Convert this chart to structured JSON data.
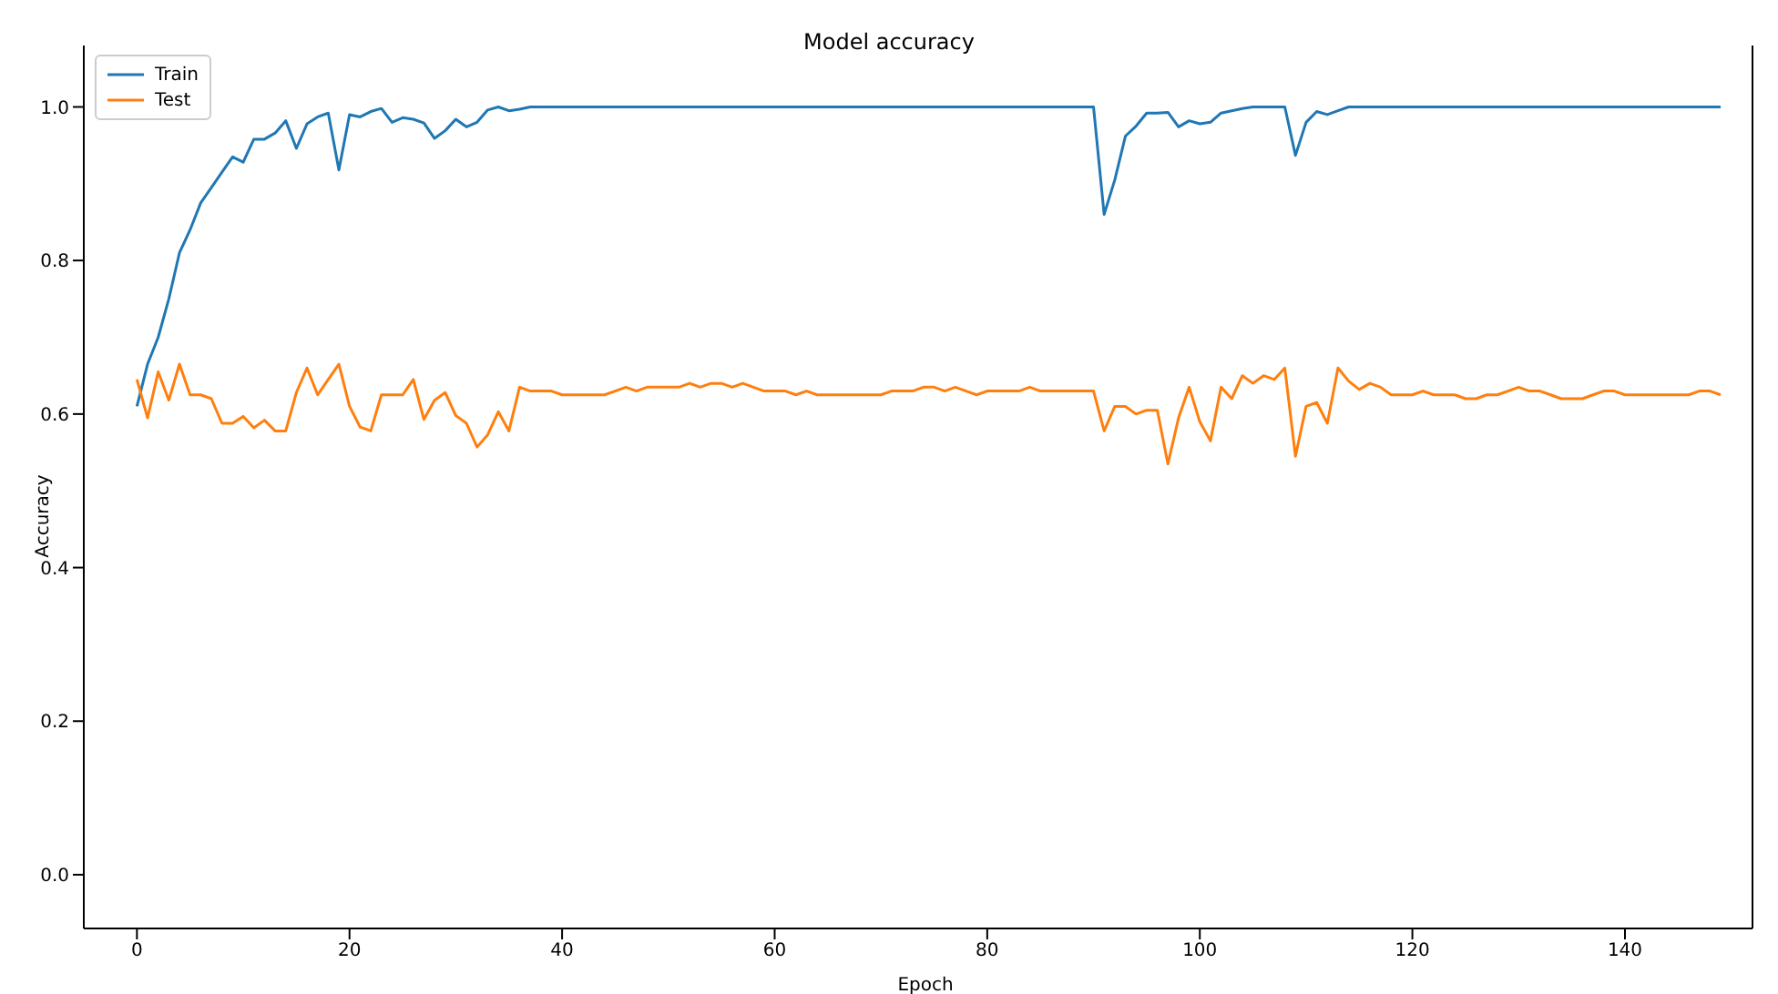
{
  "chart_data": {
    "type": "line",
    "title": "Model accuracy",
    "xlabel": "Epoch",
    "ylabel": "Accuracy",
    "x": [
      0,
      1,
      2,
      3,
      4,
      5,
      6,
      7,
      8,
      9,
      10,
      11,
      12,
      13,
      14,
      15,
      16,
      17,
      18,
      19,
      20,
      21,
      22,
      23,
      24,
      25,
      26,
      27,
      28,
      29,
      30,
      31,
      32,
      33,
      34,
      35,
      36,
      37,
      38,
      39,
      40,
      41,
      42,
      43,
      44,
      45,
      46,
      47,
      48,
      49,
      50,
      51,
      52,
      53,
      54,
      55,
      56,
      57,
      58,
      59,
      60,
      61,
      62,
      63,
      64,
      65,
      66,
      67,
      68,
      69,
      70,
      71,
      72,
      73,
      74,
      75,
      76,
      77,
      78,
      79,
      80,
      81,
      82,
      83,
      84,
      85,
      86,
      87,
      88,
      89,
      90,
      91,
      92,
      93,
      94,
      95,
      96,
      97,
      98,
      99,
      100,
      101,
      102,
      103,
      104,
      105,
      106,
      107,
      108,
      109,
      110,
      111,
      112,
      113,
      114,
      115,
      116,
      117,
      118,
      119,
      120,
      121,
      122,
      123,
      124,
      125,
      126,
      127,
      128,
      129,
      130,
      131,
      132,
      133,
      134,
      135,
      136,
      137,
      138,
      139,
      140,
      141,
      142,
      143,
      144,
      145,
      146,
      147,
      148,
      149
    ],
    "series": [
      {
        "name": "Train",
        "color": "#1f77b4",
        "values": [
          0.61,
          0.665,
          0.7,
          0.75,
          0.81,
          0.84,
          0.875,
          0.895,
          0.915,
          0.935,
          0.928,
          0.958,
          0.958,
          0.966,
          0.982,
          0.946,
          0.978,
          0.987,
          0.992,
          0.918,
          0.99,
          0.987,
          0.994,
          0.998,
          0.98,
          0.986,
          0.984,
          0.979,
          0.959,
          0.969,
          0.984,
          0.974,
          0.98,
          0.996,
          1.0,
          0.995,
          0.997,
          1,
          1,
          1,
          1,
          1,
          1,
          1,
          1,
          1,
          1,
          1,
          1,
          1,
          1,
          1,
          1,
          1,
          1,
          1,
          1,
          1,
          1,
          1,
          1,
          1,
          1,
          1,
          1,
          1,
          1,
          1,
          1,
          1,
          1,
          1,
          1,
          1,
          1,
          1,
          1,
          1,
          1,
          1,
          1,
          1,
          1,
          1,
          1,
          1,
          1,
          1,
          1,
          1,
          1,
          0.86,
          0.905,
          0.962,
          0.975,
          0.992,
          0.992,
          0.993,
          0.974,
          0.982,
          0.978,
          0.98,
          0.992,
          0.995,
          0.998,
          1,
          1,
          1,
          1,
          0.937,
          0.98,
          0.994,
          0.99,
          0.995,
          1,
          1,
          1,
          1,
          1,
          1,
          1,
          1,
          1,
          1,
          1,
          1,
          1,
          1,
          1,
          1,
          1,
          1,
          1,
          1,
          1,
          1,
          1,
          1,
          1,
          1,
          1,
          1,
          1,
          1,
          1,
          1,
          1,
          1,
          1,
          1
        ]
      },
      {
        "name": "Test",
        "color": "#ff7f0e",
        "values": [
          0.645,
          0.595,
          0.655,
          0.618,
          0.665,
          0.625,
          0.625,
          0.62,
          0.588,
          0.588,
          0.597,
          0.582,
          0.592,
          0.578,
          0.578,
          0.628,
          0.66,
          0.625,
          0.645,
          0.665,
          0.61,
          0.583,
          0.578,
          0.625,
          0.625,
          0.625,
          0.645,
          0.593,
          0.618,
          0.628,
          0.598,
          0.588,
          0.557,
          0.573,
          0.603,
          0.578,
          0.635,
          0.63,
          0.63,
          0.63,
          0.625,
          0.625,
          0.625,
          0.625,
          0.625,
          0.63,
          0.635,
          0.63,
          0.635,
          0.635,
          0.635,
          0.635,
          0.64,
          0.635,
          0.64,
          0.64,
          0.635,
          0.64,
          0.635,
          0.63,
          0.63,
          0.63,
          0.625,
          0.63,
          0.625,
          0.625,
          0.625,
          0.625,
          0.625,
          0.625,
          0.625,
          0.63,
          0.63,
          0.63,
          0.635,
          0.635,
          0.63,
          0.635,
          0.63,
          0.625,
          0.63,
          0.63,
          0.63,
          0.63,
          0.635,
          0.63,
          0.63,
          0.63,
          0.63,
          0.63,
          0.63,
          0.578,
          0.61,
          0.61,
          0.6,
          0.605,
          0.605,
          0.535,
          0.595,
          0.635,
          0.59,
          0.565,
          0.635,
          0.62,
          0.65,
          0.64,
          0.65,
          0.645,
          0.66,
          0.545,
          0.61,
          0.615,
          0.588,
          0.66,
          0.643,
          0.632,
          0.64,
          0.635,
          0.625,
          0.625,
          0.625,
          0.63,
          0.625,
          0.625,
          0.625,
          0.62,
          0.62,
          0.625,
          0.625,
          0.63,
          0.635,
          0.63,
          0.63,
          0.625,
          0.62,
          0.62,
          0.62,
          0.625,
          0.63,
          0.63,
          0.625,
          0.625,
          0.625,
          0.625,
          0.625,
          0.625,
          0.625,
          0.63,
          0.63,
          0.625
        ]
      }
    ],
    "xlim": [
      -5,
      152
    ],
    "xticks": [
      0,
      20,
      40,
      60,
      80,
      100,
      120,
      140
    ],
    "ylim": [
      -0.07,
      1.08
    ],
    "yticks": [
      {
        "value": 0,
        "label": "0.0"
      },
      0.2,
      0.4,
      0.6,
      0.8,
      {
        "value": 1,
        "label": "1.0"
      }
    ],
    "legend": "top left",
    "grid": false,
    "marker": "none",
    "line_style": "solid"
  }
}
